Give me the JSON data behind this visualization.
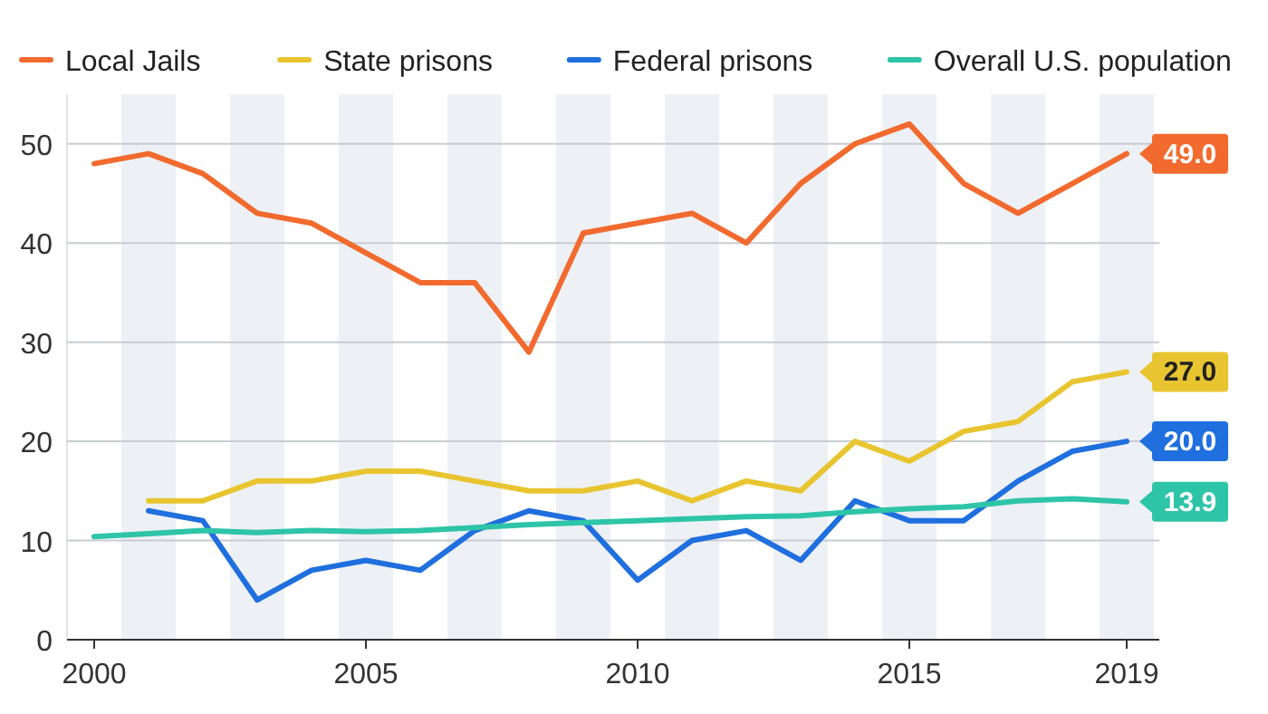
{
  "chart_data": {
    "type": "line",
    "x": [
      2000,
      2001,
      2002,
      2003,
      2004,
      2005,
      2006,
      2007,
      2008,
      2009,
      2010,
      2011,
      2012,
      2013,
      2014,
      2015,
      2016,
      2017,
      2018,
      2019
    ],
    "series": [
      {
        "name": "Local Jails",
        "color": "#f26a2e",
        "values": [
          48,
          49,
          47,
          43,
          42,
          39,
          36,
          36,
          29,
          41,
          42,
          43,
          40,
          46,
          50,
          52,
          46,
          43,
          46,
          49
        ],
        "value_labels": [
          null,
          null,
          null,
          null,
          null,
          null,
          null,
          null,
          null,
          null,
          null,
          null,
          null,
          null,
          null,
          null,
          null,
          null,
          null,
          "49.0"
        ]
      },
      {
        "name": "State prisons",
        "color": "#e8c530",
        "values": [
          null,
          14,
          14,
          16,
          16,
          17,
          17,
          16,
          15,
          15,
          16,
          14,
          16,
          15,
          20,
          18,
          21,
          22,
          26,
          27
        ],
        "value_labels": [
          null,
          null,
          null,
          null,
          null,
          null,
          null,
          null,
          null,
          null,
          null,
          null,
          null,
          null,
          null,
          null,
          null,
          null,
          null,
          "27.0"
        ]
      },
      {
        "name": "Federal prisons",
        "color": "#1f6fde",
        "values": [
          null,
          13,
          12,
          4,
          7,
          8,
          7,
          11,
          13,
          12,
          6,
          10,
          11,
          8,
          14,
          12,
          12,
          16,
          19,
          20
        ],
        "value_labels": [
          null,
          null,
          null,
          null,
          null,
          null,
          null,
          null,
          null,
          null,
          null,
          null,
          null,
          null,
          null,
          null,
          null,
          null,
          null,
          "20.0"
        ]
      },
      {
        "name": "Overall U.S. population",
        "color": "#2ec4a8",
        "values": [
          10.4,
          10.7,
          11.0,
          10.8,
          11.0,
          10.9,
          11.0,
          11.3,
          11.6,
          11.8,
          12.0,
          12.2,
          12.4,
          12.5,
          12.9,
          13.2,
          13.4,
          14.0,
          14.2,
          13.9
        ],
        "value_labels": [
          null,
          null,
          null,
          null,
          null,
          null,
          null,
          null,
          null,
          null,
          null,
          null,
          null,
          null,
          null,
          null,
          null,
          null,
          null,
          "13.9"
        ]
      }
    ],
    "xlim": [
      1999.5,
      2019.6
    ],
    "xticks": [
      2000,
      2005,
      2010,
      2015,
      2019
    ],
    "ylim": [
      0,
      55
    ],
    "bands": [
      {
        "axis": "x",
        "from": 2000.5,
        "to": 2001.5,
        "color": "#edf0f5"
      },
      {
        "axis": "x",
        "from": 2002.5,
        "to": 2003.5,
        "color": "#edf0f5"
      },
      {
        "axis": "x",
        "from": 2004.5,
        "to": 2005.5,
        "color": "#edf0f5"
      },
      {
        "axis": "x",
        "from": 2006.5,
        "to": 2007.5,
        "color": "#edf0f5"
      },
      {
        "axis": "x",
        "from": 2008.5,
        "to": 2009.5,
        "color": "#edf0f5"
      },
      {
        "axis": "x",
        "from": 2010.5,
        "to": 2011.5,
        "color": "#edf0f5"
      },
      {
        "axis": "x",
        "from": 2012.5,
        "to": 2013.5,
        "color": "#edf0f5"
      },
      {
        "axis": "x",
        "from": 2014.5,
        "to": 2015.5,
        "color": "#edf0f5"
      },
      {
        "axis": "x",
        "from": 2016.5,
        "to": 2017.5,
        "color": "#edf0f5"
      },
      {
        "axis": "x",
        "from": 2018.5,
        "to": 2019.5,
        "color": "#edf0f5"
      }
    ],
    "yticks": [
      0,
      10,
      20,
      30,
      40,
      50
    ],
    "grid": "y",
    "legend": "top",
    "marker": "none",
    "line_style": "solid"
  }
}
